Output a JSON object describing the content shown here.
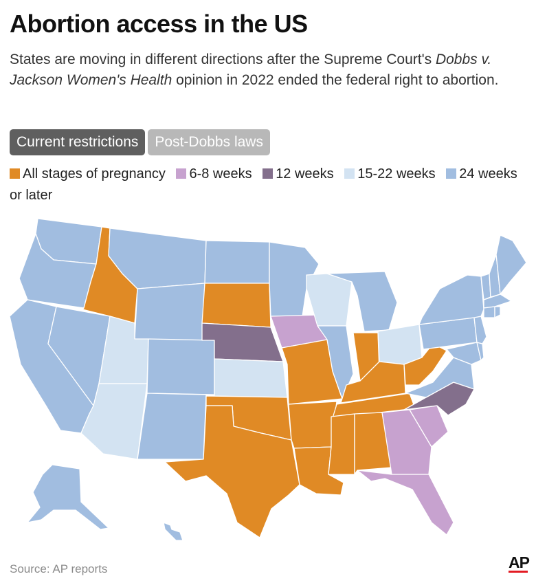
{
  "title": "Abortion access in the US",
  "subtitle": {
    "part1": "States are moving in different directions after the Supreme Court's ",
    "italic": "Dobbs v. Jackson Women's Health",
    "part2": " opinion in 2022 ended the federal right to abortion."
  },
  "tabs": [
    {
      "label": "Current restrictions",
      "active": true
    },
    {
      "label": "Post-Dobbs laws",
      "active": false
    }
  ],
  "legend": [
    {
      "label": "All stages of pregnancy",
      "color": "#e08a25"
    },
    {
      "label": "6-8 weeks",
      "color": "#c7a2cf"
    },
    {
      "label": "12 weeks",
      "color": "#836f8c"
    },
    {
      "label": "15-22 weeks",
      "color": "#d3e3f2"
    },
    {
      "label": "24 weeks or later",
      "color": "#a1bde0"
    }
  ],
  "states": {
    "all_stages": [
      "ID",
      "SD",
      "MO",
      "AR",
      "LA",
      "MS",
      "AL",
      "TN",
      "KY",
      "WV",
      "TX",
      "OK",
      "IN"
    ],
    "6_8_weeks": [
      "IA",
      "GA",
      "SC",
      "FL"
    ],
    "12_weeks": [
      "NE",
      "NC"
    ],
    "15_22_weeks": [
      "UT",
      "AZ",
      "KS",
      "WI",
      "OH"
    ],
    "24_weeks_or_later": [
      "WA",
      "OR",
      "CA",
      "NV",
      "MT",
      "WY",
      "CO",
      "NM",
      "ND",
      "MN",
      "IL",
      "MI",
      "PA",
      "NY",
      "VT",
      "NH",
      "ME",
      "MA",
      "CT",
      "RI",
      "NJ",
      "DE",
      "MD",
      "VA",
      "AK",
      "HI"
    ]
  },
  "source": "Source: AP reports",
  "logo": "AP"
}
